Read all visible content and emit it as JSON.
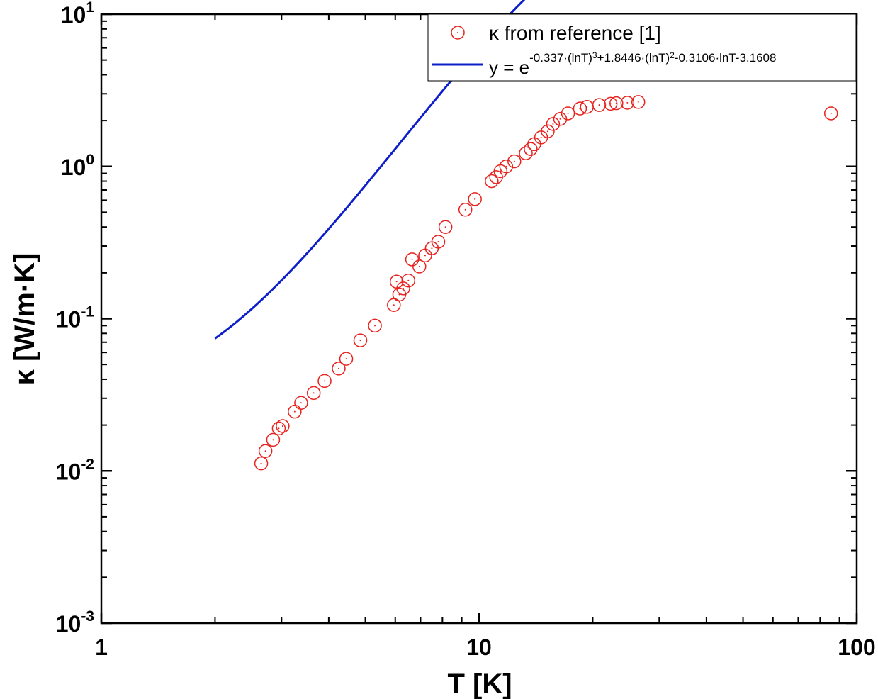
{
  "chart_data": {
    "type": "scatter",
    "xlabel": "T [K]",
    "ylabel": "κ [W/m·K]",
    "xscale": "log",
    "yscale": "log",
    "xlim": [
      1,
      100
    ],
    "ylim": [
      0.001,
      10
    ],
    "grid": false,
    "legend_position": "top-right",
    "x_ticks": [
      {
        "value": 1,
        "label": "1"
      },
      {
        "value": 10,
        "label": "10"
      },
      {
        "value": 100,
        "label": "100"
      }
    ],
    "y_ticks": [
      {
        "value": 0.001,
        "base": "10",
        "exp": "-3"
      },
      {
        "value": 0.01,
        "base": "10",
        "exp": "-2"
      },
      {
        "value": 0.1,
        "base": "10",
        "exp": "-1"
      },
      {
        "value": 1,
        "base": "10",
        "exp": "0"
      },
      {
        "value": 10,
        "base": "10",
        "exp": "1"
      }
    ],
    "series": [
      {
        "name": "κ from reference [1]",
        "kind": "scatter",
        "marker": "open-circle",
        "color": "#e8231f",
        "points": [
          [
            2.65,
            0.0112
          ],
          [
            2.72,
            0.0135
          ],
          [
            2.85,
            0.016
          ],
          [
            2.95,
            0.019
          ],
          [
            3.02,
            0.0197
          ],
          [
            3.25,
            0.0245
          ],
          [
            3.38,
            0.028
          ],
          [
            3.65,
            0.0325
          ],
          [
            3.9,
            0.039
          ],
          [
            4.25,
            0.047
          ],
          [
            4.45,
            0.0545
          ],
          [
            4.85,
            0.072
          ],
          [
            5.3,
            0.09
          ],
          [
            5.95,
            0.123
          ],
          [
            6.15,
            0.144
          ],
          [
            6.05,
            0.175
          ],
          [
            6.3,
            0.158
          ],
          [
            6.5,
            0.178
          ],
          [
            6.65,
            0.245
          ],
          [
            6.95,
            0.22
          ],
          [
            7.2,
            0.26
          ],
          [
            7.5,
            0.29
          ],
          [
            7.8,
            0.32
          ],
          [
            8.15,
            0.4
          ],
          [
            9.2,
            0.52
          ],
          [
            9.75,
            0.61
          ],
          [
            10.8,
            0.8
          ],
          [
            11.1,
            0.85
          ],
          [
            11.4,
            0.93
          ],
          [
            11.8,
            1.0
          ],
          [
            12.4,
            1.08
          ],
          [
            13.3,
            1.22
          ],
          [
            13.7,
            1.3
          ],
          [
            14.0,
            1.4
          ],
          [
            14.6,
            1.55
          ],
          [
            15.2,
            1.7
          ],
          [
            15.7,
            1.9
          ],
          [
            16.4,
            2.05
          ],
          [
            17.2,
            2.23
          ],
          [
            18.5,
            2.4
          ],
          [
            19.3,
            2.46
          ],
          [
            20.8,
            2.53
          ],
          [
            22.3,
            2.58
          ],
          [
            23.1,
            2.6
          ],
          [
            24.7,
            2.62
          ],
          [
            26.4,
            2.65
          ],
          [
            85.5,
            2.23
          ]
        ]
      },
      {
        "name": "y = e",
        "name_exponent": "-0.337·(lnT)3+1.8446·(lnT)2-0.3106·lnT-3.1608",
        "name_exponent_parts": [
          "-0.337·(lnT)",
          "3",
          "+1.8446·(lnT)",
          "2",
          "-0.3106·lnT-3.1608"
        ],
        "kind": "line",
        "color": "#0d1fc8",
        "coefficients": {
          "a3": -0.337,
          "a2": 1.8446,
          "a1": -0.3106,
          "a0": -3.1608
        },
        "x_range": [
          2.0,
          17.5
        ]
      }
    ]
  }
}
